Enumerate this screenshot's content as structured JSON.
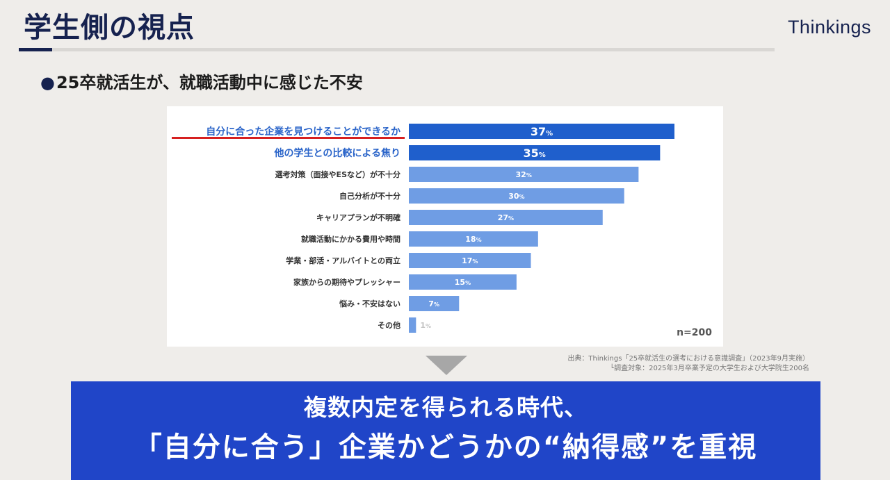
{
  "header": {
    "title": "学生側の視点",
    "brand": "Thinkings"
  },
  "subtitle": {
    "bullet": "●",
    "text": "25卒就活生が、就職活動中に感じた不安"
  },
  "chart_note": {
    "n": "n=200"
  },
  "source": {
    "line1": "出典：Thinkings「25卒就活生の選考における意識調査」（2023年9月実施）",
    "line2": "└調査対象：2025年3月卒業予定の大学生および大学院生200名"
  },
  "conclusion": {
    "line1": "複数内定を得られる時代、",
    "line2": "「自分に合う」企業かどうかの“納得感”を重視"
  },
  "colors": {
    "highlight_bar": "#1f5fcc",
    "normal_bar": "#6f9de4",
    "highlight_label": "#2a64c9",
    "conclusion_bg": "#2045c8"
  },
  "chart_data": {
    "type": "bar",
    "orientation": "horizontal",
    "categories": [
      "自分に合った企業を見つけることができるか",
      "他の学生との比較による焦り",
      "選考対策（面接やESなど）が不十分",
      "自己分析が不十分",
      "キャリアプランが不明確",
      "就職活動にかかる費用や時間",
      "学業・部活・アルバイトとの両立",
      "家族からの期待やプレッシャー",
      "悩み・不安はない",
      "その他"
    ],
    "values": [
      37,
      35,
      32,
      30,
      27,
      18,
      17,
      15,
      7,
      1
    ],
    "unit": "%",
    "highlighted": [
      0,
      1
    ],
    "xlim": [
      0,
      38
    ],
    "grid": false,
    "n": 200
  }
}
